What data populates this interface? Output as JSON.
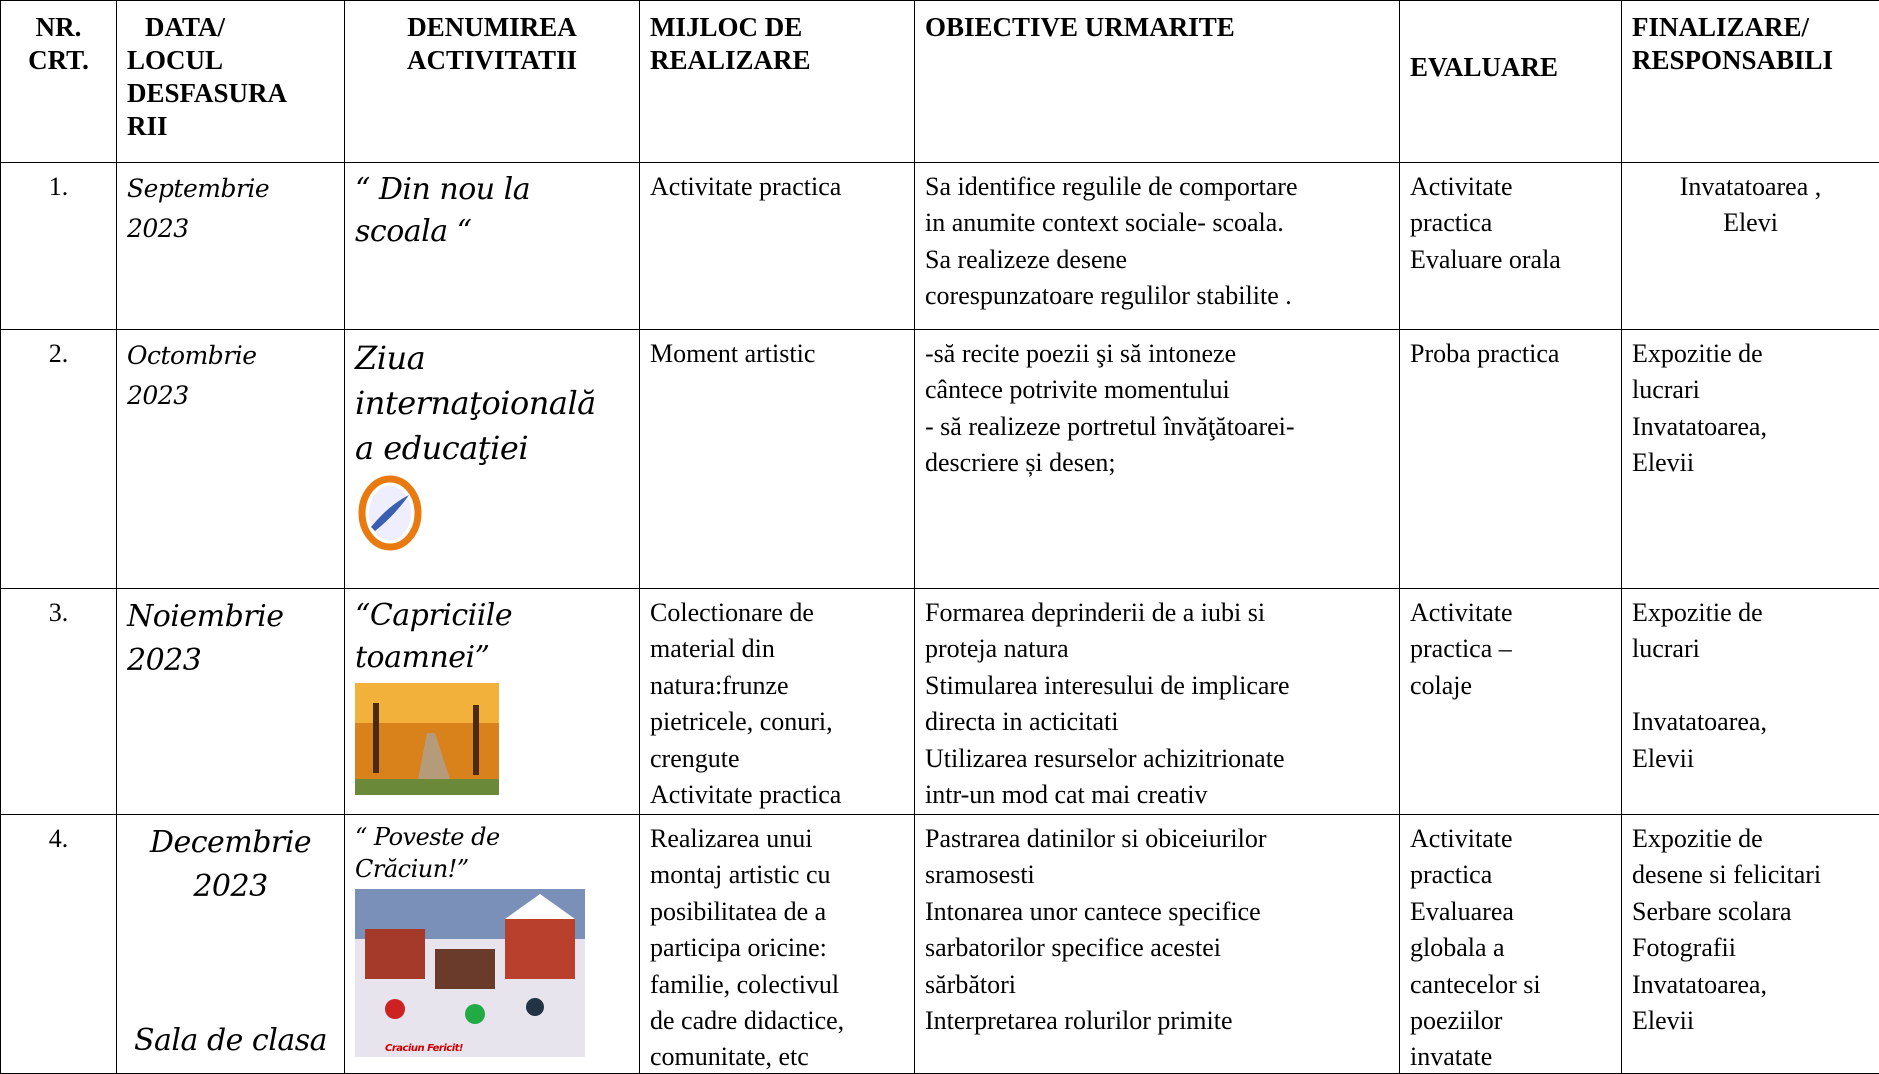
{
  "table": {
    "headers": [
      {
        "lines": [
          "NR.",
          "CRT."
        ]
      },
      {
        "lines": [
          "DATA/",
          "LOCUL",
          "DESFASURA",
          "RII"
        ]
      },
      {
        "lines": [
          "DENUMIREA",
          "ACTIVITATII"
        ]
      },
      {
        "lines": [
          "MIJLOC  DE",
          "REALIZARE"
        ]
      },
      {
        "lines": [
          "OBIECTIVE URMARITE"
        ]
      },
      {
        "lines": [
          "EVALUARE"
        ]
      },
      {
        "lines": [
          "FINALIZARE/",
          "RESPONSABILI"
        ]
      }
    ],
    "rows": [
      [
        {
          "lines": [
            "1."
          ]
        },
        {
          "lines": [
            "Septembrie",
            "2023"
          ]
        },
        {
          "lines": [
            "“ Din nou la",
            "scoala “"
          ]
        },
        {
          "lines": [
            "Activitate practica"
          ]
        },
        {
          "lines": [
            "Sa identifice regulile de comportare",
            "in anumite context sociale- scoala.",
            "Sa realizeze desene",
            "corespunzatoare regulilor stabilite ."
          ]
        },
        {
          "lines": [
            "Activitate",
            "practica",
            " Evaluare orala"
          ]
        },
        {
          "lines": [
            "Invatatoarea ,",
            "Elevi"
          ]
        }
      ],
      [
        {
          "lines": [
            "2."
          ]
        },
        {
          "lines": [
            "Octombrie",
            "2023"
          ]
        },
        {
          "lines": [
            "Ziua",
            "internaţoională",
            "a educaţiei"
          ]
        },
        {
          "lines": [
            "Moment artistic"
          ]
        },
        {
          "lines": [
            "-să recite poezii şi să intoneze",
            "cântece potrivite momentului",
            "- să realizeze portretul învăţătoarei-",
            "descriere și desen;"
          ]
        },
        {
          "lines": [
            "Proba practica"
          ]
        },
        {
          "lines": [
            "Expozitie de",
            "lucrari",
            "Invatatoarea,",
            "Elevii"
          ]
        }
      ],
      [
        {
          "lines": [
            "3."
          ]
        },
        {
          "lines": [
            "Noiembrie",
            "2023"
          ]
        },
        {
          "lines": [
            "“Capriciile",
            "toamnei”"
          ]
        },
        {
          "lines": [
            "Colectionare de",
            "material din",
            "natura:frunze",
            "pietricele, conuri,",
            "crengute",
            "Activitate practica"
          ]
        },
        {
          "lines": [
            "Formarea deprinderii de a iubi si",
            "proteja natura",
            "Stimularea interesului de implicare",
            "directa in acticitati",
            "Utilizarea resurselor achizitrionate",
            "intr-un mod cat mai creativ"
          ]
        },
        {
          "lines": [
            "Activitate",
            "practica –",
            "colaje"
          ]
        },
        {
          "lines": [
            "Expozitie de",
            "lucrari",
            "Invatatoarea,",
            "Elevii"
          ]
        }
      ],
      [
        {
          "lines": [
            "4."
          ]
        },
        {
          "lines": [
            "Decembrie",
            "2023"
          ],
          "place": "Sala de clasa"
        },
        {
          "lines": [
            "“ Poveste de",
            "Crăciun!”"
          ],
          "image_caption": "Craciun Fericit!"
        },
        {
          "lines": [
            "Realizarea unui",
            "montaj artistic  cu",
            "posibilitatea de a",
            "participa oricine:",
            "familie, colectivul",
            "de cadre didactice,",
            "comunitate, etc"
          ]
        },
        {
          "lines": [
            "Pastrarea datinilor si obiceiurilor",
            "sramosesti",
            "Intonarea unor cantece specifice",
            "sarbatorilor specifice acestei",
            "sărbători",
            "Interpretarea rolurilor primite"
          ]
        },
        {
          "lines": [
            "Activitate",
            "practica",
            "Evaluarea",
            "globala a",
            "cantecelor si",
            "poeziilor",
            "invatate"
          ]
        },
        {
          "lines": [
            "Expozitie de",
            "desene si felicitari",
            "Serbare scolara",
            " Fotografii",
            "Invatatoarea,",
            "Elevii"
          ]
        }
      ]
    ]
  }
}
